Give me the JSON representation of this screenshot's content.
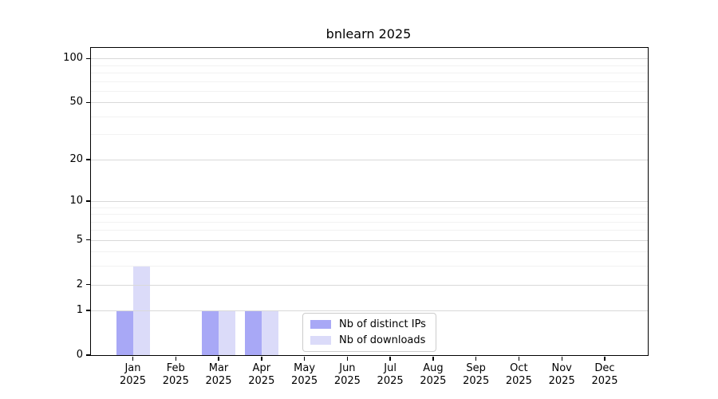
{
  "chart_data": {
    "type": "bar",
    "title": "bnlearn 2025",
    "xlabel": "",
    "ylabel": "",
    "scale": "log1p",
    "grid": "horizontal",
    "ylim": [
      0,
      118
    ],
    "y_ticks": [
      0,
      1,
      2,
      5,
      10,
      20,
      50,
      100
    ],
    "y_minor_gridlines": [
      3,
      4,
      6,
      7,
      8,
      9,
      30,
      40,
      60,
      70,
      80,
      90
    ],
    "categories": [
      "Jan 2025",
      "Feb 2025",
      "Mar 2025",
      "Apr 2025",
      "May 2025",
      "Jun 2025",
      "Jul 2025",
      "Aug 2025",
      "Sep 2025",
      "Oct 2025",
      "Nov 2025",
      "Dec 2025"
    ],
    "series": [
      {
        "name": "Nb of distinct IPs",
        "color": "#a8a8f6",
        "values": [
          1,
          0,
          1,
          1,
          0,
          0,
          0,
          0,
          0,
          0,
          0,
          0
        ]
      },
      {
        "name": "Nb of downloads",
        "color": "#dbdbf9",
        "values": [
          3,
          0,
          1,
          1,
          0,
          0,
          0,
          0,
          0,
          0,
          0,
          0
        ]
      }
    ],
    "legend_position": "lower center",
    "colors": {
      "grid_major": "#d9d9d9",
      "grid_minor": "#f2f2f2",
      "axis": "#000000",
      "legend_border": "#cccccc"
    }
  }
}
